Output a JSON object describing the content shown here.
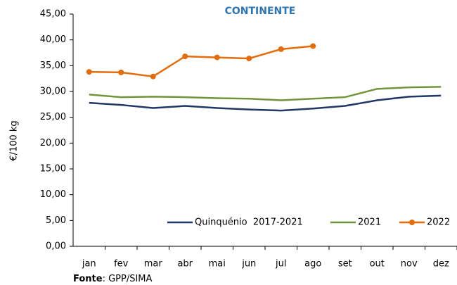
{
  "chart_data": {
    "type": "line",
    "title": "CONTINENTE",
    "y_label": "€/100 kg",
    "categories": [
      "jan",
      "fev",
      "mar",
      "abr",
      "mai",
      "jun",
      "jul",
      "ago",
      "set",
      "out",
      "nov",
      "dez"
    ],
    "series": [
      {
        "name": "Quinquénio  2017-2021",
        "color": "#1f3864",
        "markers": false,
        "values": [
          27.8,
          27.4,
          26.8,
          27.2,
          26.8,
          26.5,
          26.3,
          26.7,
          27.2,
          28.3,
          29.0,
          29.2
        ]
      },
      {
        "name": "2021",
        "color": "#70963c",
        "markers": false,
        "values": [
          29.4,
          28.9,
          29.0,
          28.9,
          28.7,
          28.6,
          28.3,
          28.6,
          28.9,
          30.5,
          30.8,
          30.9
        ]
      },
      {
        "name": "2022",
        "color": "#e46c0a",
        "markers": true,
        "values": [
          33.8,
          33.7,
          32.9,
          36.8,
          36.6,
          36.4,
          38.2,
          38.8,
          null,
          null,
          null,
          null
        ]
      }
    ],
    "ylim": [
      0,
      45
    ],
    "yticks": [
      {
        "value": 0,
        "label": "0,00"
      },
      {
        "value": 5,
        "label": "5,00"
      },
      {
        "value": 10,
        "label": "10,00"
      },
      {
        "value": 15,
        "label": "15,00"
      },
      {
        "value": 20,
        "label": "20,00"
      },
      {
        "value": 25,
        "label": "25,00"
      },
      {
        "value": 30,
        "label": "30,00"
      },
      {
        "value": 35,
        "label": "35,00"
      },
      {
        "value": 40,
        "label": "40,00"
      },
      {
        "value": 45,
        "label": "45,00"
      }
    ],
    "grid": false,
    "source": {
      "label": "Fonte",
      "text": ": GPP/SIMA"
    }
  }
}
